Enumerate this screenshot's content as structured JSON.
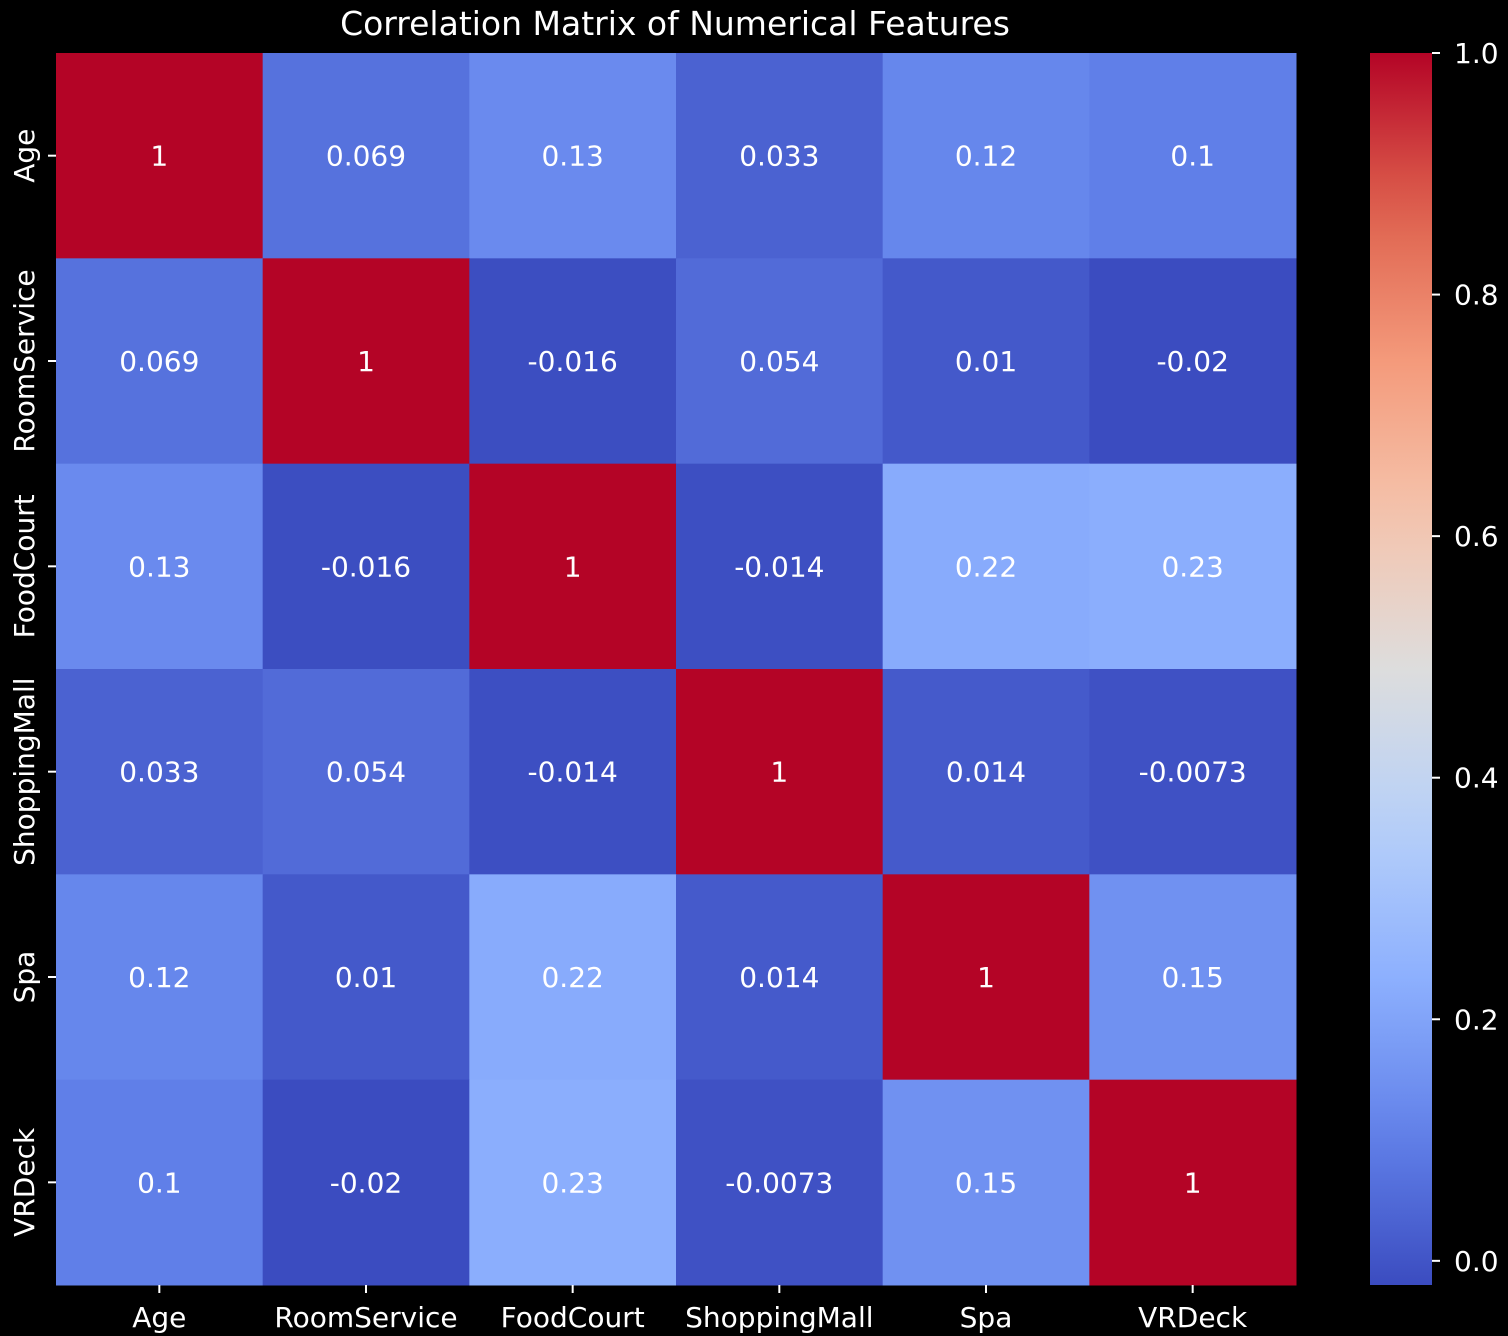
{
  "chart_data": {
    "type": "heatmap",
    "title": "Correlation Matrix of Numerical Features",
    "xlabel": "",
    "ylabel": "",
    "x_categories": [
      "Age",
      "RoomService",
      "FoodCourt",
      "ShoppingMall",
      "Spa",
      "VRDeck"
    ],
    "y_categories": [
      "Age",
      "RoomService",
      "FoodCourt",
      "ShoppingMall",
      "Spa",
      "VRDeck"
    ],
    "values": [
      [
        1,
        0.069,
        0.13,
        0.033,
        0.12,
        0.1
      ],
      [
        0.069,
        1,
        -0.016,
        0.054,
        0.01,
        -0.02
      ],
      [
        0.13,
        -0.016,
        1,
        -0.014,
        0.22,
        0.23
      ],
      [
        0.033,
        0.054,
        -0.014,
        1,
        0.014,
        -0.0073
      ],
      [
        0.12,
        0.01,
        0.22,
        0.014,
        1,
        0.15
      ],
      [
        0.1,
        -0.02,
        0.23,
        -0.0073,
        0.15,
        1
      ]
    ],
    "annotations": [
      [
        "1",
        "0.069",
        "0.13",
        "0.033",
        "0.12",
        "0.1"
      ],
      [
        "0.069",
        "1",
        "-0.016",
        "0.054",
        "0.01",
        "-0.02"
      ],
      [
        "0.13",
        "-0.016",
        "1",
        "-0.014",
        "0.22",
        "0.23"
      ],
      [
        "0.033",
        "0.054",
        "-0.014",
        "1",
        "0.014",
        "-0.0073"
      ],
      [
        "0.12",
        "0.01",
        "0.22",
        "0.014",
        "1",
        "0.15"
      ],
      [
        "0.1",
        "-0.02",
        "0.23",
        "-0.0073",
        "0.15",
        "1"
      ]
    ],
    "colormap": "coolwarm",
    "vmin": -0.02,
    "vmax": 1.0,
    "colorbar": {
      "ticks": [
        0.0,
        0.2,
        0.4,
        0.6,
        0.8,
        1.0
      ],
      "tick_labels": [
        "0.0",
        "0.2",
        "0.4",
        "0.6",
        "0.8",
        "1.0"
      ]
    },
    "grid": false,
    "background_color": "#000000",
    "text_color": "#ffffff"
  }
}
